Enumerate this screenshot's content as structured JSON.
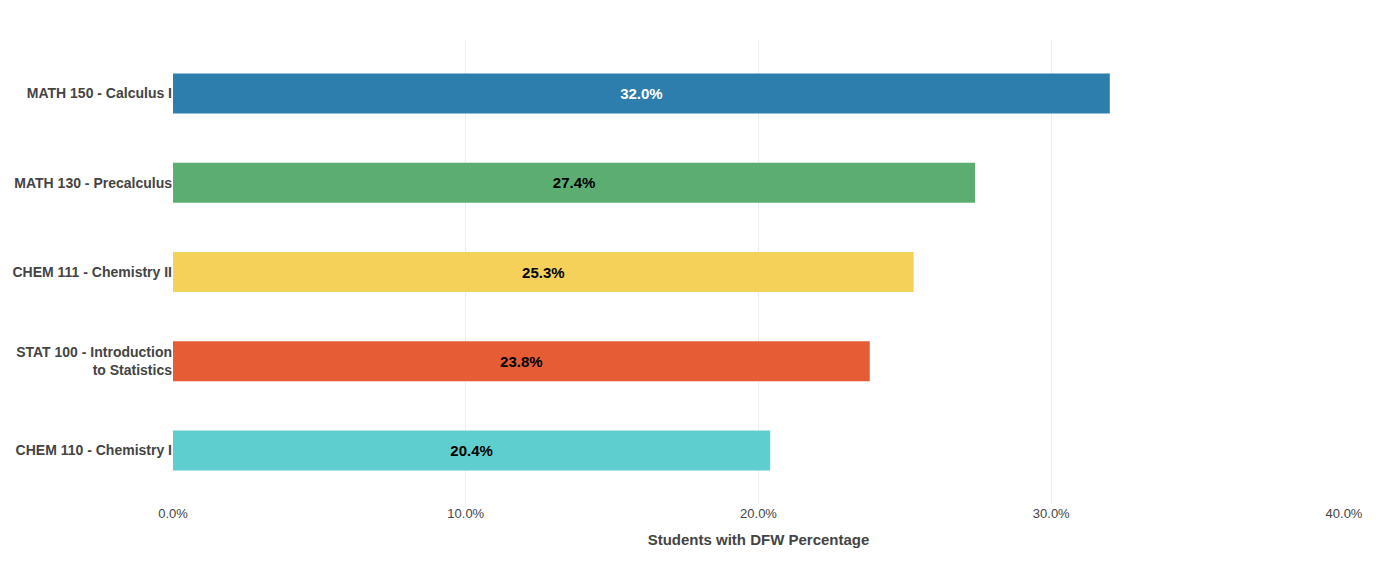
{
  "chart_data": {
    "type": "bar",
    "orientation": "horizontal",
    "categories": [
      "CHEM 110 - Chemistry I",
      "STAT 100 - Introduction\n     to Statistics",
      "CHEM 111 - Chemistry II",
      "MATH 130 - Precalculus",
      "MATH 150 - Calculus I"
    ],
    "values": [
      20.4,
      23.8,
      25.3,
      27.4,
      32.0
    ],
    "value_labels": [
      "20.4%",
      "23.8%",
      "25.3%",
      "27.4%",
      "32.0%"
    ],
    "colors": [
      "#5ECECE",
      "#E55C35",
      "#F5D15A",
      "#5BAD72",
      "#2E7EAD"
    ],
    "data_labels": true,
    "xlabel": "Students with DFW Percentage",
    "xlim": [
      0,
      40
    ],
    "xticks": [
      {
        "value": 0,
        "label": "0.0%"
      },
      {
        "value": 10,
        "label": "10.0%"
      },
      {
        "value": 20,
        "label": "20.0%"
      },
      {
        "value": 30,
        "label": "30.0%"
      },
      {
        "value": 40,
        "label": "40.0%"
      }
    ],
    "grid": true
  }
}
